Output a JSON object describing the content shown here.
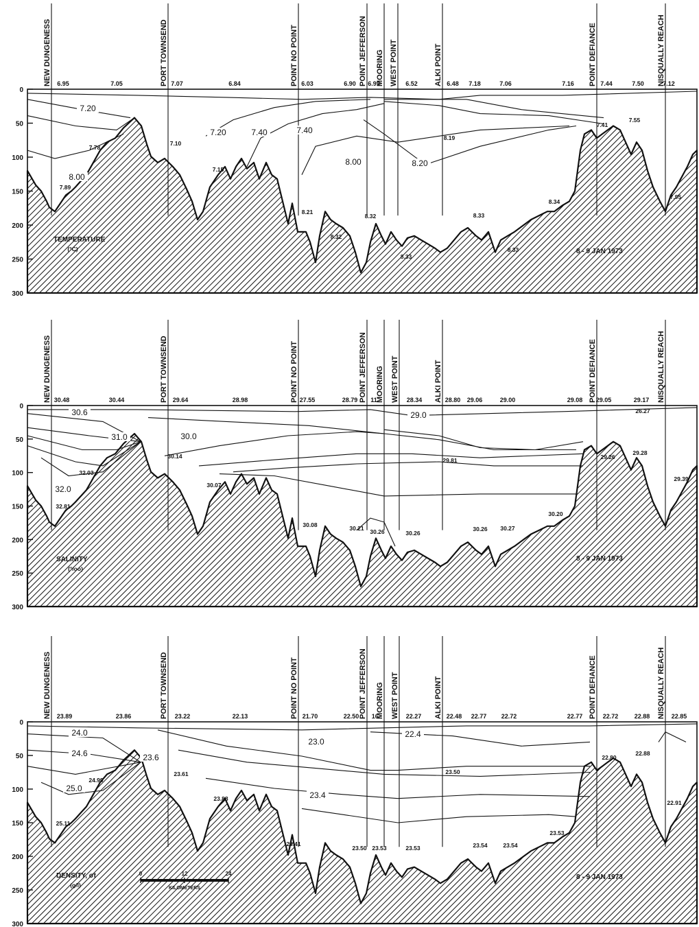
{
  "figure": {
    "stations": [
      "NEW DUNGENESS",
      "PORT TOWNSEND",
      "POINT NO POINT",
      "POINT JEFFERSON",
      "MOORING",
      "WEST POINT",
      "ALKI POINT",
      "POINT DEFIANCE",
      "NISQUALLY REACH"
    ],
    "date_label": "8 - 9 JAN 1973",
    "depth_ticks": [
      "0",
      "50",
      "100",
      "150",
      "200",
      "250",
      "300"
    ],
    "scale_bar": {
      "ticks": [
        "0",
        "12",
        "24"
      ],
      "label": "KILOMETERS"
    }
  },
  "chart_data": [
    {
      "type": "contour-section",
      "panel_label": "TEMPERATURE",
      "unit_label": "(°C)",
      "surface_values": [
        "6.95",
        "7.05",
        "7.07",
        "6.84",
        "6.03",
        "6.90",
        "6.99",
        "6.52",
        "6.48",
        "7.18",
        "7.06",
        "7.16",
        "7.44",
        "7.50",
        "7.12"
      ],
      "isoline_labels": [
        "7.20",
        "7.20",
        "7.40",
        "7.40",
        "8.00",
        "8.00",
        "8.20"
      ],
      "bottom_values": [
        "7.78",
        "7.89",
        "7.10",
        "7.15",
        "8.21",
        "8.32",
        "8.32",
        "8.33",
        "8.19",
        "8.33",
        "8.33",
        "8.34",
        "7.41",
        "7.55",
        "7.95"
      ],
      "ylim": [
        0,
        300
      ]
    },
    {
      "type": "contour-section",
      "panel_label": "SALINITY",
      "unit_label": "(°/oo)",
      "surface_values": [
        "30.48",
        "30.44",
        "29.64",
        "28.98",
        "27.55",
        "28.79",
        "11",
        "28.34",
        "28.80",
        "29.06",
        "29.00",
        "29.08",
        "29.05",
        "29.17"
      ],
      "isoline_labels": [
        "30.6",
        "31.0",
        "30.0",
        "32.0",
        "29.0"
      ],
      "bottom_values": [
        "32.03",
        "32.81",
        "30.14",
        "30.07",
        "30.08",
        "30.21",
        "30.26",
        "30.26",
        "29.81",
        "30.26",
        "30.27",
        "30.20",
        "29.26",
        "29.28",
        "26.27",
        "29.39"
      ],
      "ylim": [
        0,
        300
      ]
    },
    {
      "type": "contour-section",
      "panel_label": "DENSITY, σt",
      "unit_label": "(g/l)",
      "surface_values": [
        "23.89",
        "23.86",
        "23.22",
        "22.13",
        "21.70",
        "22.50",
        "16.",
        "22.27",
        "22.48",
        "22.77",
        "22.72",
        "22.77",
        "22.72",
        "22.88",
        "22.85"
      ],
      "isoline_labels": [
        "24.0",
        "24.6",
        "25.0",
        "23.6",
        "23.0",
        "22.4",
        "23.4"
      ],
      "bottom_values": [
        "24.99",
        "25.11",
        "23.61",
        "23.88",
        "23.41",
        "23.50",
        "23.53",
        "23.53",
        "23.50",
        "23.54",
        "23.54",
        "23.53",
        "22.80",
        "22.88",
        "22.91"
      ],
      "ylim": [
        0,
        300
      ]
    }
  ]
}
